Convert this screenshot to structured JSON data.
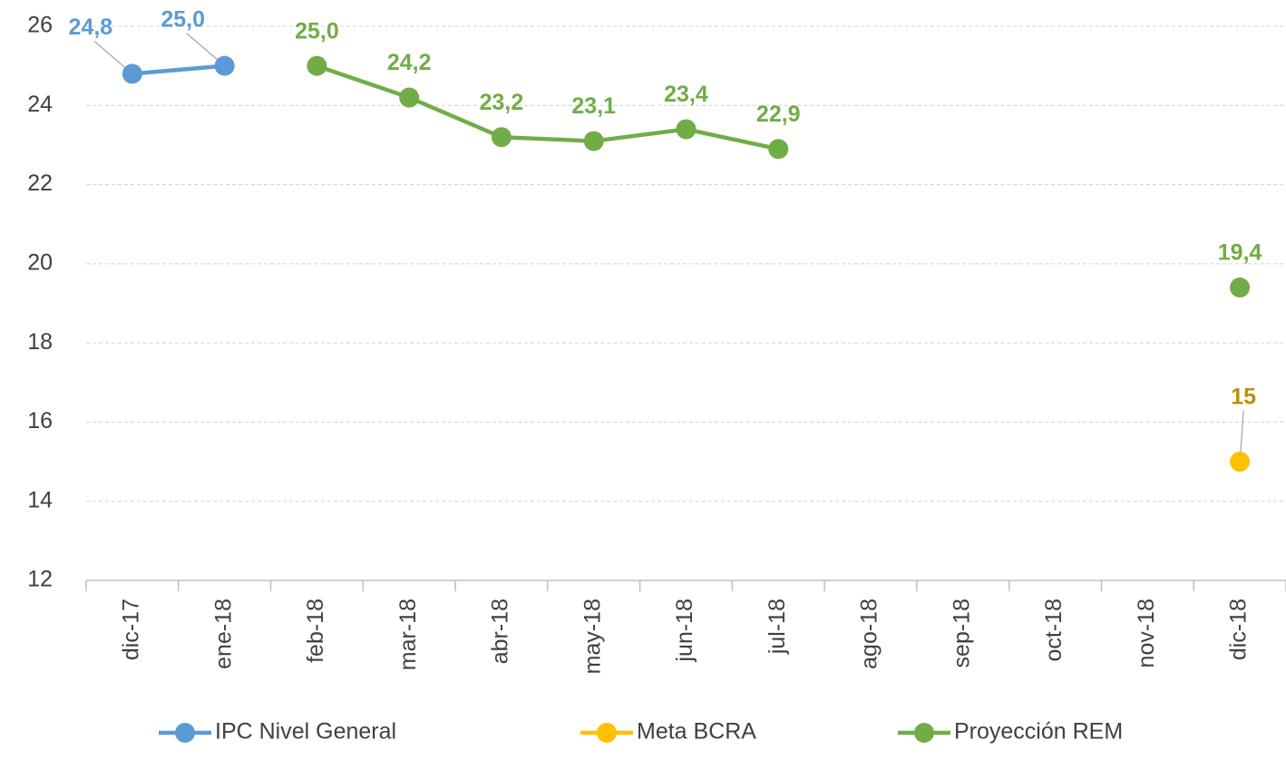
{
  "chart_data": {
    "type": "line",
    "categories": [
      "dic-17",
      "ene-18",
      "feb-18",
      "mar-18",
      "abr-18",
      "may-18",
      "jun-18",
      "jul-18",
      "ago-18",
      "sep-18",
      "oct-18",
      "nov-18",
      "dic-18"
    ],
    "series": [
      {
        "name": "IPC Nivel General",
        "color": "#5b9bd5",
        "label_color": "#5b9bd5",
        "values": [
          24.8,
          25.0,
          null,
          null,
          null,
          null,
          null,
          null,
          null,
          null,
          null,
          null,
          null
        ],
        "value_labels": [
          "24,8",
          "25,0",
          null,
          null,
          null,
          null,
          null,
          null,
          null,
          null,
          null,
          null,
          null
        ]
      },
      {
        "name": "Meta BCRA",
        "color": "#ffc000",
        "label_color": "#bf9000",
        "values": [
          null,
          null,
          null,
          null,
          null,
          null,
          null,
          null,
          null,
          null,
          null,
          null,
          15
        ],
        "value_labels": [
          null,
          null,
          null,
          null,
          null,
          null,
          null,
          null,
          null,
          null,
          null,
          null,
          "15"
        ]
      },
      {
        "name": "Proyección REM",
        "color": "#70ad47",
        "label_color": "#70ad47",
        "values": [
          null,
          null,
          25.0,
          24.2,
          23.2,
          23.1,
          23.4,
          22.9,
          null,
          null,
          null,
          null,
          19.4
        ],
        "value_labels": [
          null,
          null,
          "25,0",
          "24,2",
          "23,2",
          "23,1",
          "23,4",
          "22,9",
          null,
          null,
          null,
          null,
          "19,4"
        ]
      }
    ],
    "ylim": [
      12,
      26
    ],
    "yticks": [
      12,
      14,
      16,
      18,
      20,
      22,
      24,
      26
    ],
    "grid": true,
    "legend": "bottom"
  }
}
